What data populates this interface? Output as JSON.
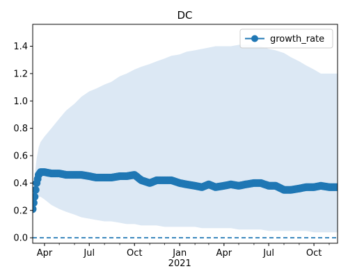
{
  "chart_data": {
    "type": "line",
    "title": "DC",
    "xlabel": "",
    "ylabel": "",
    "x_start": "2020-03-08",
    "x_end": "2021-11-18",
    "ylim": [
      -0.04,
      1.56
    ],
    "x_ticks": [
      {
        "date": "2020-04-01",
        "label": "Apr"
      },
      {
        "date": "2020-07-01",
        "label": "Jul"
      },
      {
        "date": "2020-10-01",
        "label": "Oct"
      },
      {
        "date": "2021-01-01",
        "label": "Jan"
      },
      {
        "date": "2021-04-01",
        "label": "Apr"
      },
      {
        "date": "2021-07-01",
        "label": "Jul"
      },
      {
        "date": "2021-10-01",
        "label": "Oct"
      }
    ],
    "x_year_label": {
      "date": "2021-01-01",
      "label": "2021"
    },
    "y_ticks": [
      {
        "value": 0.0,
        "label": "0.0"
      },
      {
        "value": 0.2,
        "label": "0.2"
      },
      {
        "value": 0.4,
        "label": "0.4"
      },
      {
        "value": 0.6,
        "label": "0.6"
      },
      {
        "value": 0.8,
        "label": "0.8"
      },
      {
        "value": 1.0,
        "label": "1.0"
      },
      {
        "value": 1.2,
        "label": "1.2"
      },
      {
        "value": 1.4,
        "label": "1.4"
      }
    ],
    "legend": {
      "position": "top-right",
      "entries": [
        "growth_rate"
      ]
    },
    "colors": {
      "line": "#1f77b4",
      "band": "#dce8f4",
      "zero_line": "#1f77b4"
    },
    "grid": false,
    "zero_reference_line": 0.0,
    "series": [
      {
        "name": "growth_rate",
        "marker": "circle",
        "x": [
          "2020-03-08",
          "2020-03-12",
          "2020-03-16",
          "2020-03-20",
          "2020-03-24",
          "2020-04-01",
          "2020-04-15",
          "2020-05-01",
          "2020-05-15",
          "2020-06-01",
          "2020-06-15",
          "2020-07-01",
          "2020-07-15",
          "2020-08-01",
          "2020-08-15",
          "2020-09-01",
          "2020-09-15",
          "2020-10-01",
          "2020-10-15",
          "2020-11-01",
          "2020-11-15",
          "2020-12-01",
          "2020-12-15",
          "2021-01-01",
          "2021-01-15",
          "2021-02-01",
          "2021-02-15",
          "2021-03-01",
          "2021-03-15",
          "2021-04-01",
          "2021-04-15",
          "2021-05-01",
          "2021-05-15",
          "2021-06-01",
          "2021-06-15",
          "2021-07-01",
          "2021-07-15",
          "2021-08-01",
          "2021-08-15",
          "2021-09-01",
          "2021-09-15",
          "2021-10-01",
          "2021-10-15",
          "2021-11-01",
          "2021-11-18"
        ],
        "values": [
          0.21,
          0.3,
          0.4,
          0.46,
          0.48,
          0.48,
          0.47,
          0.47,
          0.46,
          0.46,
          0.46,
          0.45,
          0.44,
          0.44,
          0.44,
          0.45,
          0.45,
          0.46,
          0.42,
          0.4,
          0.42,
          0.42,
          0.42,
          0.4,
          0.39,
          0.38,
          0.37,
          0.39,
          0.37,
          0.38,
          0.39,
          0.38,
          0.39,
          0.4,
          0.4,
          0.38,
          0.38,
          0.35,
          0.35,
          0.36,
          0.37,
          0.37,
          0.38,
          0.37,
          0.37
        ],
        "lower": [
          0.21,
          0.25,
          0.29,
          0.3,
          0.3,
          0.28,
          0.24,
          0.21,
          0.19,
          0.17,
          0.15,
          0.14,
          0.13,
          0.12,
          0.12,
          0.11,
          0.1,
          0.1,
          0.09,
          0.09,
          0.09,
          0.08,
          0.08,
          0.08,
          0.08,
          0.08,
          0.07,
          0.07,
          0.07,
          0.07,
          0.07,
          0.06,
          0.06,
          0.06,
          0.06,
          0.05,
          0.05,
          0.05,
          0.05,
          0.05,
          0.05,
          0.04,
          0.04,
          0.04,
          0.04
        ],
        "upper": [
          0.25,
          0.45,
          0.58,
          0.66,
          0.7,
          0.74,
          0.8,
          0.87,
          0.93,
          0.98,
          1.03,
          1.07,
          1.09,
          1.12,
          1.14,
          1.18,
          1.2,
          1.23,
          1.25,
          1.27,
          1.29,
          1.31,
          1.33,
          1.34,
          1.36,
          1.37,
          1.38,
          1.39,
          1.4,
          1.4,
          1.4,
          1.41,
          1.41,
          1.41,
          1.4,
          1.38,
          1.37,
          1.35,
          1.32,
          1.29,
          1.26,
          1.23,
          1.2,
          1.2,
          1.2
        ]
      }
    ]
  }
}
